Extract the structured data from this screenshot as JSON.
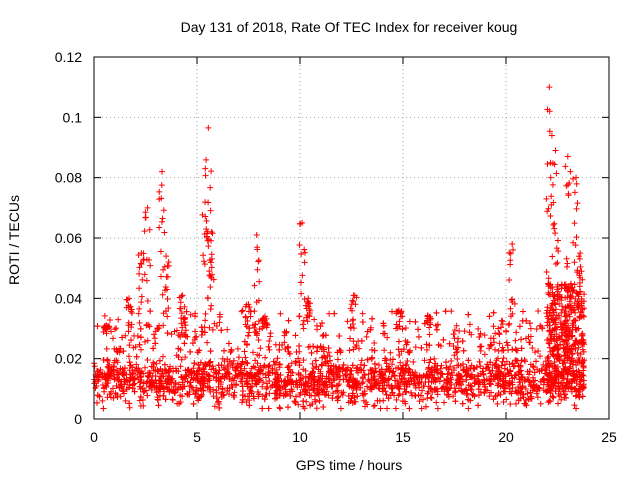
{
  "chart_data": {
    "type": "scatter",
    "title": "Day 131 of 2018, Rate Of TEC Index for receiver koug",
    "xlabel": "GPS time / hours",
    "ylabel": "ROTI / TECUs",
    "xlim": [
      0,
      25
    ],
    "ylim": [
      0,
      0.12
    ],
    "xticks": [
      0,
      5,
      10,
      15,
      20,
      25
    ],
    "xtick_labels": [
      "0",
      "5",
      "10",
      "15",
      "20",
      "25"
    ],
    "yticks": [
      0,
      0.02,
      0.04,
      0.06,
      0.08,
      0.1,
      0.12
    ],
    "ytick_labels": [
      "0",
      "0.02",
      "0.04",
      "0.06",
      "0.08",
      "0.1",
      "0.12"
    ],
    "grid": true,
    "marker": "+",
    "series": [
      {
        "name": "ROTI",
        "color": "#ff0000",
        "x_range": [
          0,
          23.8
        ],
        "baseline": {
          "typical_low": 0.005,
          "typical_high": 0.03,
          "median": 0.013
        },
        "peaks": [
          {
            "x": 0.6,
            "y": 0.031
          },
          {
            "x": 1.7,
            "y": 0.04
          },
          {
            "x": 2.3,
            "y": 0.055
          },
          {
            "x": 2.6,
            "y": 0.07
          },
          {
            "x": 3.3,
            "y": 0.082
          },
          {
            "x": 3.5,
            "y": 0.054
          },
          {
            "x": 4.3,
            "y": 0.041
          },
          {
            "x": 5.4,
            "y": 0.083
          },
          {
            "x": 5.55,
            "y": 0.0965
          },
          {
            "x": 5.7,
            "y": 0.062
          },
          {
            "x": 7.5,
            "y": 0.038
          },
          {
            "x": 7.9,
            "y": 0.061
          },
          {
            "x": 8.3,
            "y": 0.034
          },
          {
            "x": 10.1,
            "y": 0.065
          },
          {
            "x": 10.4,
            "y": 0.04
          },
          {
            "x": 12.6,
            "y": 0.041
          },
          {
            "x": 14.8,
            "y": 0.036
          },
          {
            "x": 16.2,
            "y": 0.034
          },
          {
            "x": 20.3,
            "y": 0.058
          },
          {
            "x": 22.1,
            "y": 0.11
          },
          {
            "x": 22.2,
            "y": 0.071
          },
          {
            "x": 22.4,
            "y": 0.089
          },
          {
            "x": 23.0,
            "y": 0.087
          },
          {
            "x": 23.4,
            "y": 0.08
          },
          {
            "x": 23.6,
            "y": 0.055
          }
        ]
      }
    ]
  }
}
